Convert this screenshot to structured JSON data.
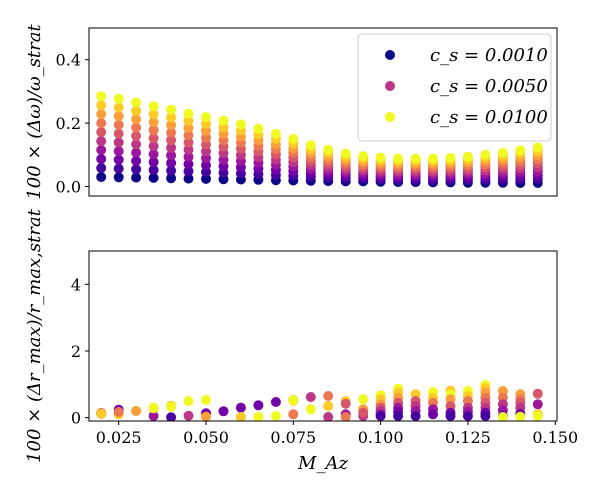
{
  "colors": {
    "cmap": [
      "#0d0887",
      "#46039f",
      "#7201a8",
      "#9c179e",
      "#bd3786",
      "#d8576b",
      "#ed7953",
      "#fb9f3a",
      "#fdca26",
      "#f0f921"
    ]
  },
  "chart_data": [
    {
      "type": "scatter",
      "ylabel": "100 × (Δω)/ω_strat",
      "ylim": [
        -0.03,
        0.5
      ],
      "yticks": [
        0.0,
        0.2,
        0.4
      ],
      "ytick_labels": [
        "0.0",
        "0.2",
        "0.4"
      ],
      "show_xticks": false,
      "x": [
        0.02,
        0.025,
        0.03,
        0.035,
        0.04,
        0.045,
        0.05,
        0.055,
        0.06,
        0.065,
        0.07,
        0.075,
        0.08,
        0.085,
        0.09,
        0.095,
        0.1,
        0.105,
        0.11,
        0.115,
        0.12,
        0.125,
        0.13,
        0.135,
        0.14,
        0.145
      ],
      "series_low": [
        0.03,
        0.029,
        0.028,
        0.027,
        0.026,
        0.025,
        0.024,
        0.023,
        0.022,
        0.021,
        0.02,
        0.019,
        0.018,
        0.017,
        0.016,
        0.016,
        0.015,
        0.014,
        0.014,
        0.013,
        0.013,
        0.012,
        0.012,
        0.012,
        0.011,
        0.011
      ],
      "series_high": [
        0.285,
        0.277,
        0.265,
        0.253,
        0.242,
        0.23,
        0.219,
        0.208,
        0.196,
        0.182,
        0.166,
        0.15,
        0.13,
        0.116,
        0.103,
        0.096,
        0.091,
        0.088,
        0.088,
        0.088,
        0.09,
        0.094,
        0.1,
        0.106,
        0.114,
        0.123
      ],
      "n_levels": 10,
      "legend": {
        "position": "top-right",
        "entries": [
          {
            "label": "c_s = 0.0010",
            "color": "#0d0887"
          },
          {
            "label": "c_s = 0.0050",
            "color": "#bd3786"
          },
          {
            "label": "c_s = 0.0100",
            "color": "#f0f921"
          }
        ]
      }
    },
    {
      "type": "scatter",
      "xlabel": "M_Az",
      "ylabel": "100 × (Δr_max)/r_max,strat",
      "xlim": [
        0.0165,
        0.1505
      ],
      "ylim": [
        -0.1,
        5.0
      ],
      "yticks": [
        0,
        2,
        4
      ],
      "ytick_labels": [
        "0",
        "2",
        "4"
      ],
      "xticks": [
        0.025,
        0.05,
        0.075,
        0.1,
        0.125,
        0.15
      ],
      "xtick_labels": [
        "0.025",
        "0.050",
        "0.075",
        "0.100",
        "0.125",
        "0.150"
      ],
      "points": [
        [
          0.02,
          0.12,
          0
        ],
        [
          0.02,
          0.13,
          3
        ],
        [
          0.02,
          0.14,
          5
        ],
        [
          0.02,
          0.12,
          8
        ],
        [
          0.025,
          0.24,
          2
        ],
        [
          0.025,
          0.1,
          8
        ],
        [
          0.025,
          0.17,
          6
        ],
        [
          0.03,
          0.21,
          9
        ],
        [
          0.03,
          0.2,
          7
        ],
        [
          0.035,
          0.05,
          3
        ],
        [
          0.035,
          0.28,
          8
        ],
        [
          0.035,
          0.3,
          9
        ],
        [
          0.04,
          0.01,
          1
        ],
        [
          0.04,
          0.36,
          8
        ],
        [
          0.04,
          0.33,
          9
        ],
        [
          0.045,
          0.06,
          4
        ],
        [
          0.045,
          0.5,
          9
        ],
        [
          0.05,
          0.13,
          2
        ],
        [
          0.05,
          0.03,
          7
        ],
        [
          0.05,
          0.53,
          9
        ],
        [
          0.055,
          0.19,
          2
        ],
        [
          0.06,
          0.3,
          2
        ],
        [
          0.06,
          0.02,
          8
        ],
        [
          0.065,
          0.37,
          2
        ],
        [
          0.065,
          0.02,
          9
        ],
        [
          0.07,
          0.47,
          2
        ],
        [
          0.07,
          0.05,
          9
        ],
        [
          0.075,
          0.53,
          2
        ],
        [
          0.075,
          0.51,
          8
        ],
        [
          0.075,
          0.53,
          9
        ],
        [
          0.075,
          0.1,
          6
        ],
        [
          0.08,
          0.62,
          4
        ],
        [
          0.08,
          0.25,
          9
        ],
        [
          0.085,
          0.02,
          4
        ],
        [
          0.085,
          0.65,
          6
        ],
        [
          0.085,
          0.35,
          8
        ],
        [
          0.09,
          0.5,
          8
        ],
        [
          0.09,
          0.42,
          5
        ],
        [
          0.09,
          0.1,
          3
        ],
        [
          0.09,
          0.02,
          6
        ],
        [
          0.095,
          0.55,
          9
        ],
        [
          0.095,
          0.25,
          7
        ],
        [
          0.095,
          0.05,
          4
        ],
        [
          0.095,
          0.15,
          5
        ],
        [
          0.1,
          0.67,
          9
        ],
        [
          0.1,
          0.55,
          8
        ],
        [
          0.1,
          0.4,
          7
        ],
        [
          0.1,
          0.3,
          5
        ],
        [
          0.1,
          0.2,
          4
        ],
        [
          0.1,
          0.1,
          3
        ],
        [
          0.1,
          0.05,
          1
        ],
        [
          0.105,
          0.87,
          9
        ],
        [
          0.105,
          0.75,
          8
        ],
        [
          0.105,
          0.6,
          7
        ],
        [
          0.105,
          0.45,
          5
        ],
        [
          0.105,
          0.3,
          3
        ],
        [
          0.105,
          0.18,
          2
        ],
        [
          0.105,
          0.05,
          1
        ],
        [
          0.11,
          0.7,
          8
        ],
        [
          0.11,
          0.5,
          5
        ],
        [
          0.11,
          0.35,
          4
        ],
        [
          0.11,
          0.2,
          3
        ],
        [
          0.11,
          0.05,
          1
        ],
        [
          0.115,
          0.77,
          9
        ],
        [
          0.115,
          0.6,
          8
        ],
        [
          0.115,
          0.45,
          6
        ],
        [
          0.115,
          0.25,
          3
        ],
        [
          0.115,
          0.1,
          2
        ],
        [
          0.12,
          0.81,
          8
        ],
        [
          0.12,
          0.7,
          9
        ],
        [
          0.12,
          0.55,
          7
        ],
        [
          0.12,
          0.35,
          5
        ],
        [
          0.12,
          0.15,
          2
        ],
        [
          0.12,
          0.05,
          1
        ],
        [
          0.125,
          0.8,
          9
        ],
        [
          0.125,
          0.65,
          8
        ],
        [
          0.125,
          0.5,
          6
        ],
        [
          0.125,
          0.3,
          4
        ],
        [
          0.125,
          0.18,
          3
        ],
        [
          0.125,
          0.05,
          1
        ],
        [
          0.13,
          0.98,
          9
        ],
        [
          0.13,
          0.88,
          8
        ],
        [
          0.13,
          0.75,
          7
        ],
        [
          0.13,
          0.6,
          6
        ],
        [
          0.13,
          0.45,
          5
        ],
        [
          0.13,
          0.3,
          4
        ],
        [
          0.13,
          0.15,
          2
        ],
        [
          0.13,
          0.05,
          1
        ],
        [
          0.135,
          0.8,
          7
        ],
        [
          0.135,
          0.6,
          6
        ],
        [
          0.135,
          0.4,
          4
        ],
        [
          0.135,
          0.22,
          3
        ],
        [
          0.135,
          0.05,
          1
        ],
        [
          0.135,
          0.02,
          9
        ],
        [
          0.14,
          0.7,
          7
        ],
        [
          0.14,
          0.55,
          6
        ],
        [
          0.14,
          0.45,
          5
        ],
        [
          0.14,
          0.3,
          4
        ],
        [
          0.14,
          0.12,
          2
        ],
        [
          0.14,
          0.03,
          9
        ],
        [
          0.145,
          0.72,
          5
        ],
        [
          0.145,
          0.4,
          3
        ],
        [
          0.145,
          0.1,
          8
        ],
        [
          0.145,
          0.05,
          9
        ]
      ]
    }
  ]
}
